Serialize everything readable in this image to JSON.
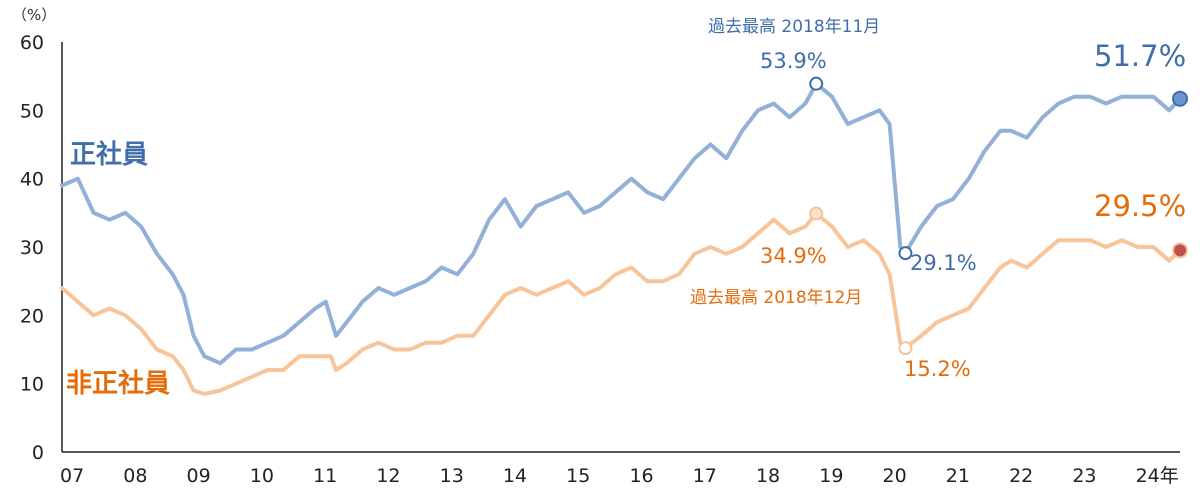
{
  "chart_data": {
    "type": "line",
    "unit_label": "（%）",
    "ylim": [
      0,
      60
    ],
    "y_ticks": [
      "0",
      "10",
      "20",
      "30",
      "40",
      "50",
      "60"
    ],
    "x_tick_labels": [
      "07",
      "08",
      "09",
      "10",
      "11",
      "12",
      "13",
      "14",
      "15",
      "16",
      "17",
      "18",
      "19",
      "20",
      "21",
      "22",
      "23",
      "24年"
    ],
    "grid": false,
    "colors": {
      "regular_line": "#93B0D8",
      "regular_text": "#3F6EA8",
      "nonregular_line": "#F8C49A",
      "nonregular_text": "#E46C0A",
      "last_point_fill_regular": "#6D95CC",
      "last_point_fill_nonregular": "#C0504D"
    },
    "series": [
      {
        "name": "正社員",
        "x": [
          2007.0,
          2007.25,
          2007.5,
          2007.75,
          2008.0,
          2008.25,
          2008.5,
          2008.75,
          2008.92,
          2009.08,
          2009.25,
          2009.5,
          2009.75,
          2010.0,
          2010.25,
          2010.5,
          2010.75,
          2011.0,
          2011.17,
          2011.33,
          2011.5,
          2011.75,
          2012.0,
          2012.25,
          2012.5,
          2012.75,
          2013.0,
          2013.25,
          2013.5,
          2013.75,
          2014.0,
          2014.25,
          2014.5,
          2014.75,
          2015.0,
          2015.25,
          2015.5,
          2015.75,
          2016.0,
          2016.25,
          2016.5,
          2016.75,
          2017.0,
          2017.25,
          2017.5,
          2017.75,
          2018.0,
          2018.25,
          2018.5,
          2018.75,
          2018.92,
          2019.17,
          2019.42,
          2019.67,
          2019.92,
          2020.08,
          2020.25,
          2020.33,
          2020.58,
          2020.83,
          2021.08,
          2021.33,
          2021.58,
          2021.83,
          2022.0,
          2022.25,
          2022.5,
          2022.75,
          2023.0,
          2023.25,
          2023.5,
          2023.75,
          2024.0,
          2024.25,
          2024.5,
          2024.67
        ],
        "values": [
          39.0,
          40.0,
          35.0,
          34.0,
          35.0,
          33.0,
          29.0,
          26.0,
          23.0,
          17.0,
          14.0,
          13.0,
          15.0,
          15.0,
          16.0,
          17.0,
          19.0,
          21.0,
          22.0,
          17.0,
          19.0,
          22.0,
          24.0,
          23.0,
          24.0,
          25.0,
          27.0,
          26.0,
          29.0,
          34.0,
          37.0,
          33.0,
          36.0,
          37.0,
          38.0,
          35.0,
          36.0,
          38.0,
          40.0,
          38.0,
          37.0,
          40.0,
          43.0,
          45.0,
          43.0,
          47.0,
          50.0,
          51.0,
          49.0,
          51.0,
          53.9,
          52.0,
          48.0,
          49.0,
          50.0,
          48.0,
          30.0,
          29.1,
          33.0,
          36.0,
          37.0,
          40.0,
          44.0,
          47.0,
          47.0,
          46.0,
          49.0,
          51.0,
          52.0,
          52.0,
          51.0,
          52.0,
          52.0,
          52.0,
          50.0,
          51.7
        ]
      },
      {
        "name": "非正社員",
        "x": [
          2007.0,
          2007.25,
          2007.5,
          2007.75,
          2008.0,
          2008.25,
          2008.5,
          2008.75,
          2008.92,
          2009.08,
          2009.25,
          2009.5,
          2009.75,
          2010.0,
          2010.25,
          2010.5,
          2010.75,
          2011.0,
          2011.25,
          2011.33,
          2011.5,
          2011.75,
          2012.0,
          2012.25,
          2012.5,
          2012.75,
          2013.0,
          2013.25,
          2013.5,
          2013.75,
          2014.0,
          2014.25,
          2014.5,
          2014.75,
          2015.0,
          2015.25,
          2015.5,
          2015.75,
          2016.0,
          2016.25,
          2016.5,
          2016.75,
          2017.0,
          2017.25,
          2017.5,
          2017.75,
          2018.0,
          2018.25,
          2018.5,
          2018.75,
          2018.92,
          2019.17,
          2019.42,
          2019.67,
          2019.92,
          2020.08,
          2020.25,
          2020.33,
          2020.58,
          2020.83,
          2021.08,
          2021.33,
          2021.58,
          2021.83,
          2022.0,
          2022.25,
          2022.5,
          2022.75,
          2023.0,
          2023.25,
          2023.5,
          2023.75,
          2024.0,
          2024.25,
          2024.5,
          2024.67
        ],
        "values": [
          24.0,
          22.0,
          20.0,
          21.0,
          20.0,
          18.0,
          15.0,
          14.0,
          12.0,
          9.0,
          8.5,
          9.0,
          10.0,
          11.0,
          12.0,
          12.0,
          14.0,
          14.0,
          14.0,
          12.0,
          13.0,
          15.0,
          16.0,
          15.0,
          15.0,
          16.0,
          16.0,
          17.0,
          17.0,
          20.0,
          23.0,
          24.0,
          23.0,
          24.0,
          25.0,
          23.0,
          24.0,
          26.0,
          27.0,
          25.0,
          25.0,
          26.0,
          29.0,
          30.0,
          29.0,
          30.0,
          32.0,
          34.0,
          32.0,
          33.0,
          34.9,
          33.0,
          30.0,
          31.0,
          29.0,
          26.0,
          16.0,
          15.2,
          17.0,
          19.0,
          20.0,
          21.0,
          24.0,
          27.0,
          28.0,
          27.0,
          29.0,
          31.0,
          31.0,
          31.0,
          30.0,
          31.0,
          30.0,
          30.0,
          28.0,
          29.5
        ]
      }
    ],
    "annotations": {
      "regular_peak_caption": "過去最高 2018年11月",
      "regular_peak_value": "53.9%",
      "regular_trough_value": "29.1%",
      "regular_latest_value": "51.7%",
      "nonregular_peak_value": "34.9%",
      "nonregular_peak_caption": "過去最高 2018年12月",
      "nonregular_trough_value": "15.2%",
      "nonregular_latest_value": "29.5%"
    }
  }
}
